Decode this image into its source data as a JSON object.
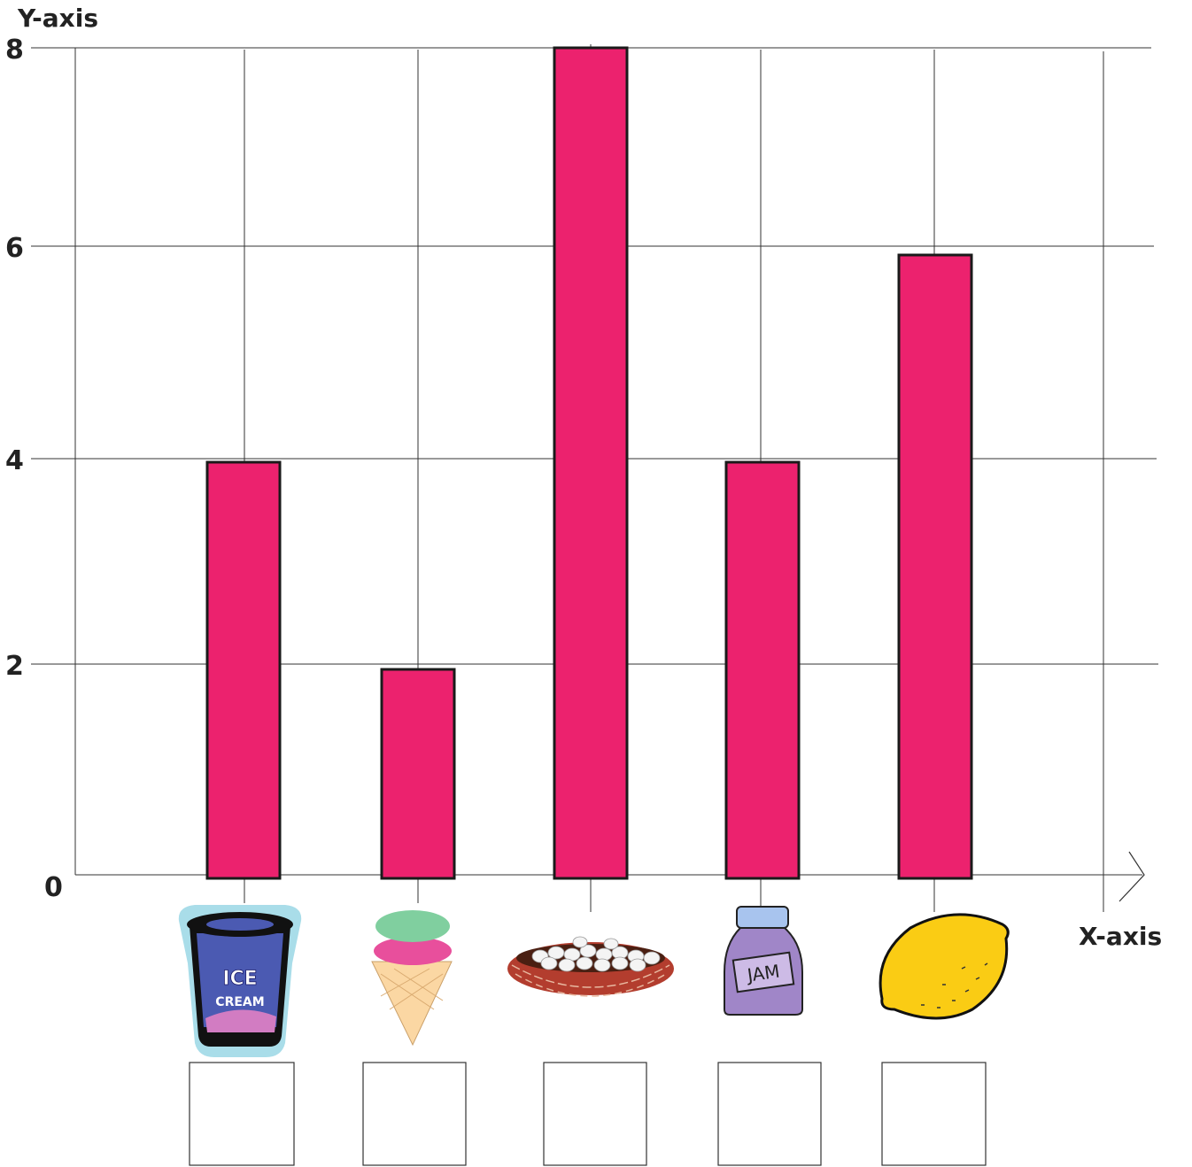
{
  "chart_data": {
    "type": "bar",
    "ylabel": "Y-axis",
    "xlabel": "X-axis",
    "ylim": [
      0,
      8
    ],
    "yticks": [
      0,
      2,
      4,
      6,
      8
    ],
    "grid": true,
    "categories": [
      "ice-cream-tub",
      "ice-cream-cone",
      "egg-basket",
      "jam-jar",
      "lemon"
    ],
    "pictures": [
      "ice-cream-tub-icon",
      "ice-cream-cone-icon",
      "egg-basket-icon",
      "jam-jar-icon",
      "lemon-icon"
    ],
    "values": [
      4,
      2,
      8,
      4,
      6
    ],
    "bar_color": "#ec226e",
    "answer_boxes": 5
  },
  "labels": {
    "tub_line1": "ICE",
    "tub_line2": "CREAM",
    "jar": "JAM"
  }
}
